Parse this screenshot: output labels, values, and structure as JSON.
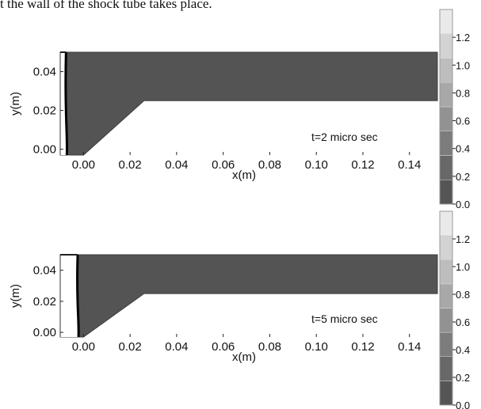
{
  "caption": "t the wall of the shock tube takes place.",
  "colorbar": {
    "tick_labels": [
      "0.0",
      "0.2",
      "0.4",
      "0.6",
      "0.8",
      "1.0",
      "1.2"
    ],
    "range": [
      0,
      1.4
    ],
    "colors": [
      "#555555",
      "#686868",
      "#7c7c7c",
      "#929292",
      "#a8a8a8",
      "#bdbdbd",
      "#d3d3d3",
      "#eaeaea"
    ]
  },
  "colors": {
    "fluid": "#545454",
    "wall": "#ffffff",
    "front": "#000000"
  },
  "chart_data": [
    {
      "type": "heatmap",
      "annotation": "t=2 micro sec",
      "xlabel": "x(m)",
      "ylabel": "y(m)",
      "xlim": [
        -0.01,
        0.152
      ],
      "ylim": [
        -0.003,
        0.05
      ],
      "x_ticks": [
        "0.00",
        "0.02",
        "0.04",
        "0.06",
        "0.08",
        "0.10",
        "0.12",
        "0.14"
      ],
      "y_ticks": [
        "0.00",
        "0.02",
        "0.04"
      ],
      "x_tick_values": [
        0,
        0.02,
        0.04,
        0.06,
        0.08,
        0.1,
        0.12,
        0.14
      ],
      "y_tick_values": [
        0,
        0.02,
        0.04
      ],
      "domain_boundary": [
        [
          -0.01,
          0.05
        ],
        [
          0.152,
          0.05
        ],
        [
          0.152,
          0.025
        ],
        [
          0.026,
          0.025
        ],
        [
          0.0,
          -0.003
        ],
        [
          -0.01,
          -0.003
        ]
      ],
      "shock_front_x": -0.0075,
      "post_shock_region": [
        -0.01,
        -0.0075
      ],
      "field_value": 0.0
    },
    {
      "type": "heatmap",
      "annotation": "t=5 micro sec",
      "xlabel": "x(m)",
      "ylabel": "y(m)",
      "xlim": [
        -0.01,
        0.152
      ],
      "ylim": [
        -0.003,
        0.05
      ],
      "x_ticks": [
        "0.00",
        "0.02",
        "0.04",
        "0.06",
        "0.08",
        "0.10",
        "0.12",
        "0.14"
      ],
      "y_ticks": [
        "0.00",
        "0.02",
        "0.04"
      ],
      "x_tick_values": [
        0,
        0.02,
        0.04,
        0.06,
        0.08,
        0.1,
        0.12,
        0.14
      ],
      "y_tick_values": [
        0,
        0.02,
        0.04
      ],
      "domain_boundary": [
        [
          -0.01,
          0.05
        ],
        [
          0.152,
          0.05
        ],
        [
          0.152,
          0.025
        ],
        [
          0.026,
          0.025
        ],
        [
          0.0,
          -0.003
        ],
        [
          -0.01,
          -0.003
        ]
      ],
      "shock_front_x": -0.0025,
      "post_shock_region": [
        -0.01,
        -0.0025
      ],
      "field_value": 0.0
    }
  ]
}
